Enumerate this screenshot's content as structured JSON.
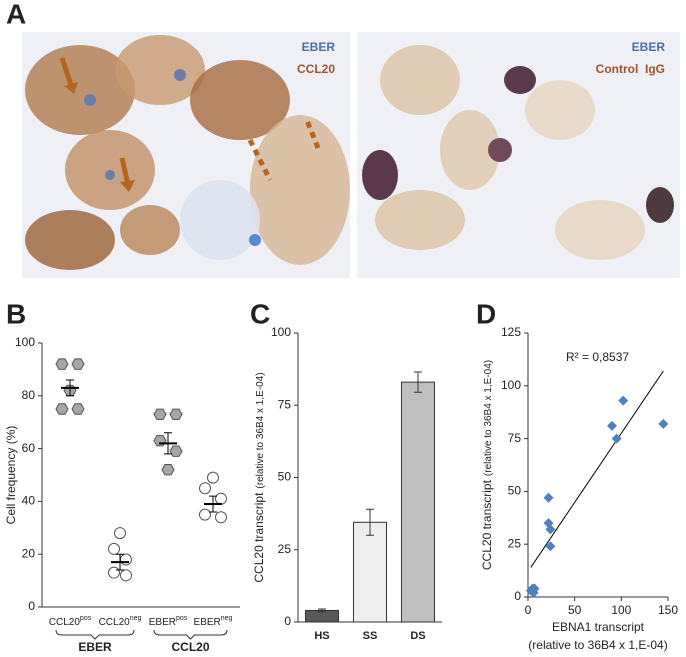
{
  "panel_labels": [
    "A",
    "B",
    "C",
    "D"
  ],
  "photos": {
    "left": [
      "EBER",
      "CCL20"
    ],
    "right": [
      "EBER",
      "Control  IgG"
    ]
  },
  "chart_data": [
    {
      "type": "dotplot",
      "ylabel": "Cell frequency  (%)",
      "ylim": [
        0,
        100
      ],
      "yticks": [
        0,
        20,
        40,
        60,
        80,
        100
      ],
      "groups": [
        {
          "label": "EBER",
          "series": [
            {
              "name": "CCL20",
              "sup": "pos",
              "marker": "hexagon",
              "color": "#a6a6a6",
              "values": [
                92,
                92,
                82,
                75,
                75
              ],
              "mean": 83,
              "sem": 3
            },
            {
              "name": "CCL20",
              "sup": "neg",
              "marker": "circle",
              "color": "#ffffff",
              "values": [
                28,
                22,
                18,
                13,
                12
              ],
              "mean": 17,
              "sem": 3
            }
          ]
        },
        {
          "label": "CCL20",
          "series": [
            {
              "name": "EBER",
              "sup": "pos",
              "marker": "hexagon",
              "color": "#a6a6a6",
              "values": [
                73,
                73,
                63,
                59,
                52
              ],
              "mean": 62,
              "sem": 4
            },
            {
              "name": "EBER",
              "sup": "neg",
              "marker": "circle",
              "color": "#ffffff",
              "values": [
                49,
                45,
                41,
                35,
                34
              ],
              "mean": 39,
              "sem": 3
            }
          ]
        }
      ]
    },
    {
      "type": "bar",
      "ylabel": [
        "CCL20 transcript",
        "(relative to 36B4 x 1,E-04)"
      ],
      "ylim": [
        0,
        100
      ],
      "yticks": [
        0,
        25,
        50,
        75,
        100
      ],
      "categories": [
        "HS",
        "SS",
        "DS"
      ],
      "values": [
        4,
        34.5,
        83
      ],
      "errors": [
        0.5,
        4.5,
        3.5
      ],
      "colors": [
        "#595959",
        "#eeeeee",
        "#bfbfbf"
      ]
    },
    {
      "type": "scatter",
      "xlabel": [
        "EBNA1 transcript",
        "(relative to 36B4 x 1,E-04)"
      ],
      "ylabel": [
        "CCL20 transcript",
        "(relative to 36B4 x 1,E-04)"
      ],
      "xlim": [
        0,
        150
      ],
      "xticks": [
        0,
        50,
        100,
        150
      ],
      "ylim": [
        0,
        125
      ],
      "yticks": [
        0,
        25,
        50,
        75,
        100,
        125
      ],
      "x": [
        3,
        5,
        6,
        7,
        5,
        22,
        22,
        24,
        24,
        90,
        95,
        102,
        145
      ],
      "y": [
        3,
        4,
        2,
        4,
        3,
        47,
        35,
        32,
        24,
        81,
        75,
        93,
        82
      ],
      "color": "#4f81bd",
      "annotation": "R² = 0,8537",
      "trendline": {
        "x": [
          3,
          145
        ],
        "y": [
          14,
          107
        ]
      }
    }
  ]
}
